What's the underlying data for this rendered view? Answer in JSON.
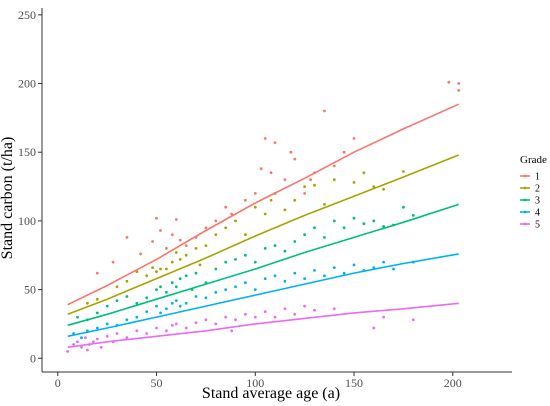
{
  "chart_data": {
    "type": "scatter",
    "title": "",
    "xlabel": "Stand average age (a)",
    "ylabel": "Stand carbon (t/ha)",
    "xlim": [
      -8,
      230
    ],
    "ylim": [
      -10,
      255
    ],
    "x_ticks": [
      0,
      50,
      100,
      150,
      200
    ],
    "y_ticks": [
      0,
      50,
      100,
      150,
      200,
      250
    ],
    "grid": false,
    "legend": {
      "title": "Grade",
      "placement": "right",
      "entries": [
        "1",
        "2",
        "3",
        "4",
        "5"
      ]
    },
    "colors": {
      "1": "#f8766d",
      "2": "#a3a500",
      "3": "#00bf7d",
      "4": "#00b0f6",
      "5": "#e76bf3"
    },
    "series": [
      {
        "name": "1",
        "fit_line": {
          "x": [
            5,
            25,
            50,
            75,
            100,
            125,
            150,
            175,
            203
          ],
          "y": [
            39,
            53,
            72,
            93,
            113,
            131,
            150,
            167,
            185
          ]
        },
        "points": [
          [
            20,
            62
          ],
          [
            28,
            70
          ],
          [
            35,
            88
          ],
          [
            42,
            76
          ],
          [
            48,
            85
          ],
          [
            50,
            102
          ],
          [
            52,
            93
          ],
          [
            55,
            80
          ],
          [
            58,
            90
          ],
          [
            60,
            101
          ],
          [
            62,
            86
          ],
          [
            65,
            82
          ],
          [
            70,
            88
          ],
          [
            75,
            95
          ],
          [
            80,
            100
          ],
          [
            85,
            110
          ],
          [
            88,
            105
          ],
          [
            95,
            115
          ],
          [
            100,
            120
          ],
          [
            103,
            138
          ],
          [
            105,
            160
          ],
          [
            108,
            135
          ],
          [
            110,
            157
          ],
          [
            115,
            130
          ],
          [
            118,
            150
          ],
          [
            120,
            145
          ],
          [
            125,
            120
          ],
          [
            128,
            130
          ],
          [
            130,
            135
          ],
          [
            135,
            180
          ],
          [
            140,
            140
          ],
          [
            145,
            150
          ],
          [
            150,
            160
          ],
          [
            198,
            201
          ],
          [
            203,
            200
          ],
          [
            203,
            195
          ]
        ]
      },
      {
        "name": "2",
        "fit_line": {
          "x": [
            5,
            25,
            50,
            75,
            100,
            125,
            150,
            175,
            203
          ],
          "y": [
            32,
            43,
            58,
            73,
            89,
            104,
            118,
            132,
            148
          ]
        },
        "points": [
          [
            15,
            40
          ],
          [
            20,
            43
          ],
          [
            30,
            52
          ],
          [
            35,
            56
          ],
          [
            40,
            63
          ],
          [
            45,
            60
          ],
          [
            48,
            66
          ],
          [
            50,
            63
          ],
          [
            52,
            65
          ],
          [
            55,
            65
          ],
          [
            58,
            70
          ],
          [
            60,
            77
          ],
          [
            62,
            72
          ],
          [
            65,
            75
          ],
          [
            70,
            80
          ],
          [
            72,
            68
          ],
          [
            75,
            82
          ],
          [
            80,
            90
          ],
          [
            85,
            95
          ],
          [
            90,
            100
          ],
          [
            95,
            90
          ],
          [
            100,
            110
          ],
          [
            105,
            105
          ],
          [
            108,
            115
          ],
          [
            110,
            120
          ],
          [
            115,
            108
          ],
          [
            120,
            115
          ],
          [
            125,
            125
          ],
          [
            130,
            126
          ],
          [
            135,
            112
          ],
          [
            140,
            130
          ],
          [
            150,
            128
          ],
          [
            155,
            135
          ],
          [
            160,
            125
          ],
          [
            165,
            123
          ],
          [
            175,
            136
          ]
        ]
      },
      {
        "name": "3",
        "fit_line": {
          "x": [
            5,
            25,
            50,
            75,
            100,
            125,
            150,
            175,
            203
          ],
          "y": [
            24,
            32,
            43,
            54,
            65,
            77,
            88,
            99,
            112
          ]
        },
        "points": [
          [
            10,
            30
          ],
          [
            15,
            28
          ],
          [
            20,
            33
          ],
          [
            25,
            38
          ],
          [
            30,
            42
          ],
          [
            35,
            45
          ],
          [
            40,
            40
          ],
          [
            45,
            44
          ],
          [
            50,
            50
          ],
          [
            52,
            52
          ],
          [
            55,
            48
          ],
          [
            58,
            55
          ],
          [
            60,
            52
          ],
          [
            62,
            58
          ],
          [
            65,
            60
          ],
          [
            68,
            50
          ],
          [
            70,
            62
          ],
          [
            75,
            55
          ],
          [
            80,
            65
          ],
          [
            85,
            70
          ],
          [
            90,
            72
          ],
          [
            95,
            75
          ],
          [
            100,
            70
          ],
          [
            105,
            80
          ],
          [
            110,
            82
          ],
          [
            115,
            78
          ],
          [
            120,
            85
          ],
          [
            125,
            90
          ],
          [
            130,
            95
          ],
          [
            135,
            88
          ],
          [
            140,
            100
          ],
          [
            145,
            95
          ],
          [
            150,
            102
          ],
          [
            155,
            98
          ],
          [
            160,
            100
          ],
          [
            165,
            96
          ],
          [
            170,
            97
          ],
          [
            175,
            110
          ],
          [
            180,
            104
          ]
        ]
      },
      {
        "name": "4",
        "fit_line": {
          "x": [
            5,
            25,
            50,
            75,
            100,
            125,
            150,
            175,
            203
          ],
          "y": [
            16,
            22,
            30,
            38,
            46,
            54,
            62,
            69,
            76
          ]
        },
        "points": [
          [
            8,
            18
          ],
          [
            12,
            15
          ],
          [
            15,
            20
          ],
          [
            20,
            22
          ],
          [
            25,
            25
          ],
          [
            30,
            24
          ],
          [
            35,
            28
          ],
          [
            40,
            30
          ],
          [
            45,
            34
          ],
          [
            50,
            38
          ],
          [
            52,
            33
          ],
          [
            55,
            36
          ],
          [
            58,
            40
          ],
          [
            60,
            42
          ],
          [
            62,
            38
          ],
          [
            65,
            40
          ],
          [
            70,
            45
          ],
          [
            75,
            44
          ],
          [
            80,
            48
          ],
          [
            85,
            50
          ],
          [
            90,
            52
          ],
          [
            95,
            55
          ],
          [
            100,
            50
          ],
          [
            105,
            58
          ],
          [
            110,
            60
          ],
          [
            115,
            56
          ],
          [
            120,
            62
          ],
          [
            125,
            58
          ],
          [
            130,
            64
          ],
          [
            135,
            60
          ],
          [
            140,
            66
          ],
          [
            145,
            62
          ],
          [
            150,
            68
          ],
          [
            155,
            64
          ],
          [
            160,
            66
          ],
          [
            165,
            70
          ],
          [
            170,
            65
          ],
          [
            180,
            70
          ]
        ]
      },
      {
        "name": "5",
        "fit_line": {
          "x": [
            5,
            25,
            50,
            75,
            100,
            125,
            150,
            175,
            203
          ],
          "y": [
            8,
            12,
            16,
            20,
            25,
            29,
            33,
            36,
            40
          ]
        },
        "points": [
          [
            5,
            5
          ],
          [
            8,
            10
          ],
          [
            10,
            12
          ],
          [
            12,
            8
          ],
          [
            14,
            15
          ],
          [
            15,
            6
          ],
          [
            16,
            10
          ],
          [
            18,
            12
          ],
          [
            20,
            14
          ],
          [
            22,
            8
          ],
          [
            25,
            16
          ],
          [
            28,
            12
          ],
          [
            30,
            18
          ],
          [
            35,
            15
          ],
          [
            40,
            20
          ],
          [
            45,
            18
          ],
          [
            50,
            22
          ],
          [
            55,
            20
          ],
          [
            58,
            24
          ],
          [
            60,
            25
          ],
          [
            65,
            22
          ],
          [
            70,
            26
          ],
          [
            75,
            28
          ],
          [
            80,
            25
          ],
          [
            85,
            30
          ],
          [
            88,
            20
          ],
          [
            90,
            28
          ],
          [
            95,
            32
          ],
          [
            100,
            30
          ],
          [
            105,
            34
          ],
          [
            110,
            30
          ],
          [
            115,
            36
          ],
          [
            120,
            32
          ],
          [
            125,
            38
          ],
          [
            130,
            35
          ],
          [
            140,
            36
          ],
          [
            160,
            22
          ],
          [
            165,
            30
          ],
          [
            180,
            28
          ]
        ]
      }
    ]
  }
}
